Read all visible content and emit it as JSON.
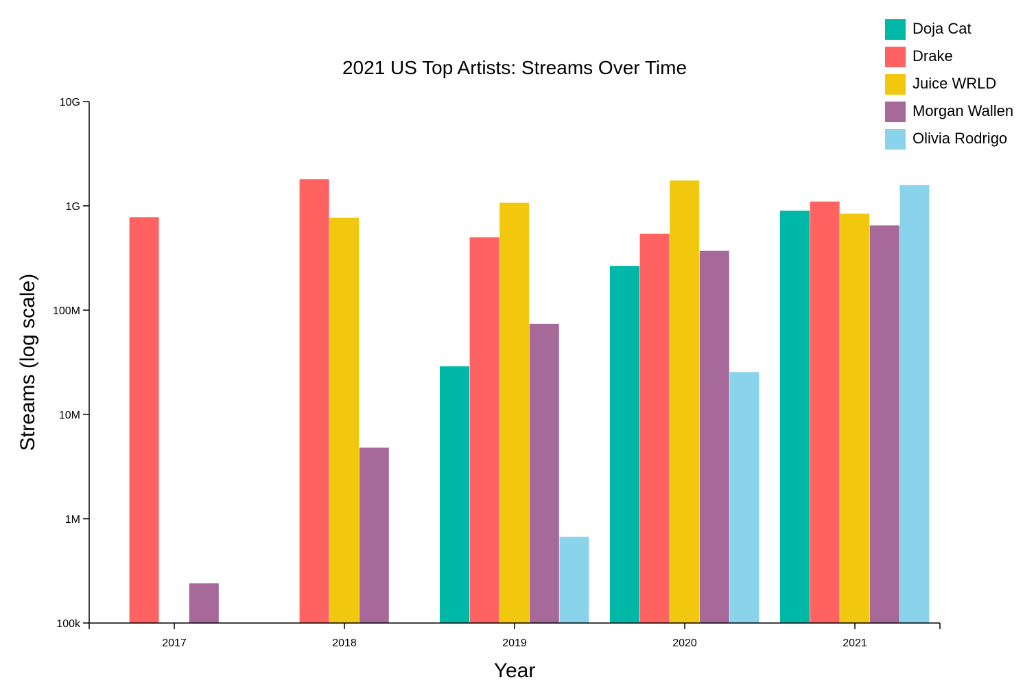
{
  "chart_data": {
    "type": "bar",
    "title": "2021 US Top Artists: Streams Over Time",
    "xlabel": "Year",
    "ylabel": "Streams (log scale)",
    "y_scale": "log",
    "ylim": [
      100000,
      10000000000
    ],
    "y_ticks": [
      {
        "value": 100000,
        "label": "100k"
      },
      {
        "value": 1000000,
        "label": "1M"
      },
      {
        "value": 10000000,
        "label": "10M"
      },
      {
        "value": 100000000,
        "label": "100M"
      },
      {
        "value": 1000000000,
        "label": "1G"
      },
      {
        "value": 10000000000,
        "label": "10G"
      }
    ],
    "categories": [
      "2017",
      "2018",
      "2019",
      "2020",
      "2021"
    ],
    "grid": false,
    "legend_position": "top-right",
    "series": [
      {
        "name": "Doja Cat",
        "color": "#00b7a8",
        "values": [
          null,
          null,
          29000000,
          265000000,
          900000000
        ]
      },
      {
        "name": "Drake",
        "color": "#fe6361",
        "values": [
          780000000,
          1800000000,
          500000000,
          540000000,
          1100000000
        ]
      },
      {
        "name": "Juice WRLD",
        "color": "#f2c80f",
        "values": [
          null,
          770000000,
          1070000000,
          1750000000,
          840000000
        ]
      },
      {
        "name": "Morgan Wallen",
        "color": "#a66999",
        "values": [
          240000,
          4800000,
          74000000,
          370000000,
          650000000
        ]
      },
      {
        "name": "Olivia Rodrigo",
        "color": "#8ad4eb",
        "values": [
          null,
          null,
          670000,
          25500000,
          1580000000
        ]
      }
    ]
  }
}
